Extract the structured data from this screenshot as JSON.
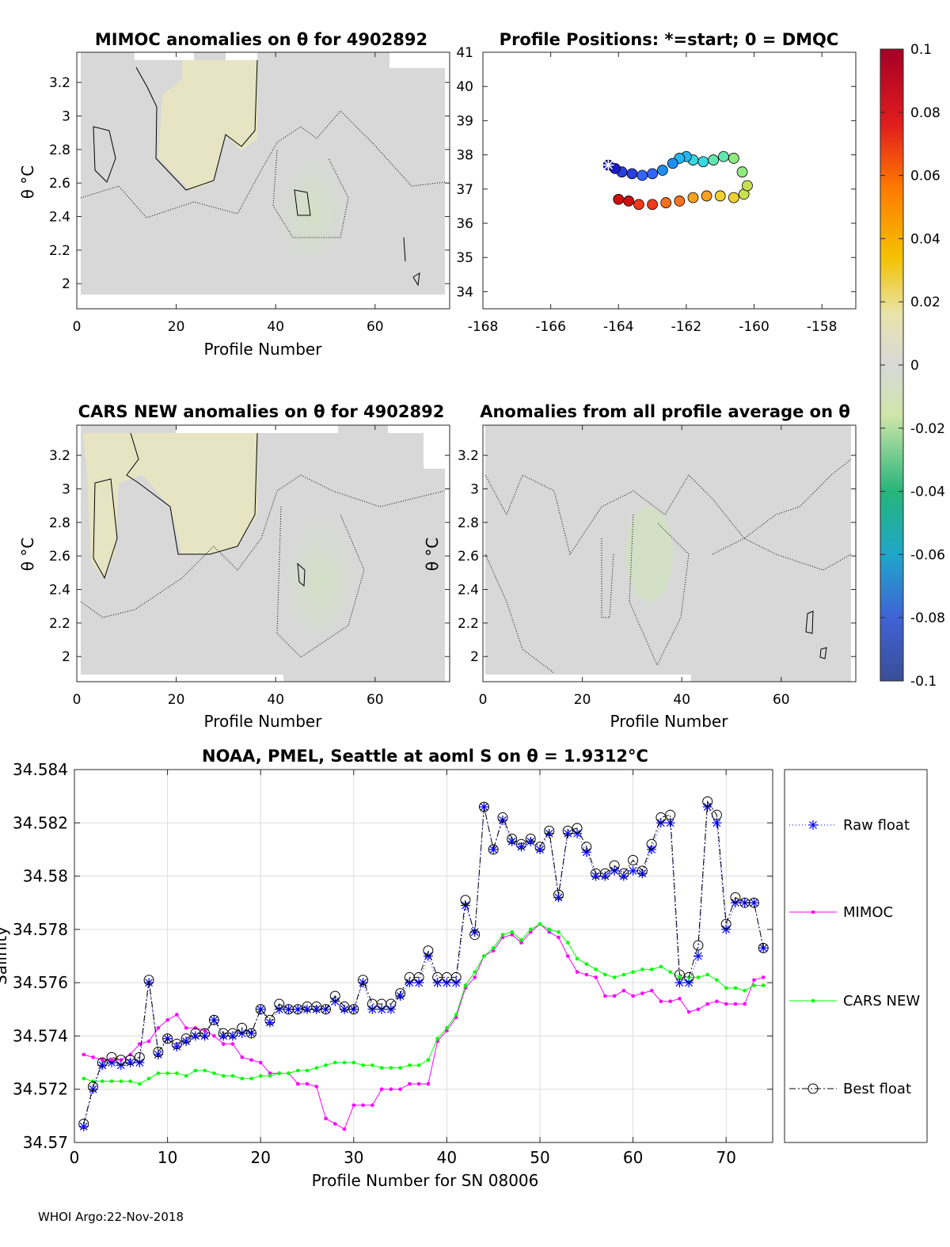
{
  "chart_data": [
    {
      "id": "mimoc",
      "type": "heatmap",
      "title": "MIMOC anomalies on θ  for 4902892",
      "xlabel": "Profile Number",
      "ylabel": "θ °C",
      "xlim": [
        0,
        75
      ],
      "ylim": [
        1.85,
        3.38
      ],
      "xticks": [
        "0",
        "20",
        "40",
        "60"
      ],
      "yticks": [
        "2",
        "2.2",
        "2.4",
        "2.6",
        "2.8",
        "3",
        "3.2"
      ],
      "contour_levels": [
        -0.01,
        0.01
      ]
    },
    {
      "id": "positions",
      "type": "scatter",
      "title": "Profile Positions: *=start; 0 = DMQC",
      "xlim": [
        -168,
        -157
      ],
      "ylim": [
        33.5,
        41
      ],
      "xticks": [
        "-168",
        "-166",
        "-164",
        "-162",
        "-160",
        "-158"
      ],
      "yticks": [
        "34",
        "35",
        "36",
        "37",
        "38",
        "39",
        "40",
        "41"
      ],
      "track_lon": [
        -164.3,
        -164.1,
        -163.9,
        -163.6,
        -163.3,
        -163.0,
        -162.7,
        -162.4,
        -162.2,
        -162.0,
        -161.8,
        -161.5,
        -161.2,
        -160.9,
        -160.6,
        -160.35,
        -160.2,
        -160.3,
        -160.6,
        -161.0,
        -161.4,
        -161.8,
        -162.2,
        -162.6,
        -163.0,
        -163.4,
        -163.7,
        -164.0
      ],
      "track_lat": [
        37.7,
        37.6,
        37.5,
        37.45,
        37.4,
        37.45,
        37.55,
        37.75,
        37.9,
        37.95,
        37.85,
        37.8,
        37.85,
        37.95,
        37.9,
        37.5,
        37.1,
        36.85,
        36.75,
        36.8,
        36.8,
        36.75,
        36.65,
        36.6,
        36.55,
        36.55,
        36.65,
        36.7
      ]
    },
    {
      "id": "colorbar",
      "type": "colorbar",
      "range": [
        -0.1,
        0.1
      ],
      "ticks": [
        "0.1",
        "0.08",
        "0.06",
        "0.04",
        "0.02",
        "0",
        "-0.02",
        "-0.04",
        "-0.06",
        "-0.08",
        "-0.1"
      ]
    },
    {
      "id": "cars",
      "type": "heatmap",
      "title": "CARS NEW anomalies on θ for 4902892",
      "xlabel": "Profile Number",
      "ylabel": "θ °C",
      "xlim": [
        0,
        75
      ],
      "ylim": [
        1.85,
        3.38
      ],
      "xticks": [
        "0",
        "20",
        "40",
        "60"
      ],
      "yticks": [
        "2",
        "2.2",
        "2.4",
        "2.6",
        "2.8",
        "3",
        "3.2"
      ]
    },
    {
      "id": "allavg",
      "type": "heatmap",
      "title": "Anomalies from all profile average on θ",
      "xlabel": "Profile Number",
      "ylabel": "θ °C",
      "xlim": [
        0,
        75
      ],
      "ylim": [
        1.85,
        3.38
      ],
      "xticks": [
        "0",
        "20",
        "40",
        "60"
      ],
      "yticks": [
        "2",
        "2.2",
        "2.4",
        "2.6",
        "2.8",
        "3",
        "3.2"
      ]
    },
    {
      "id": "salinity",
      "type": "line",
      "title": "NOAA, PMEL, Seattle at aoml S on θ = 1.9312°C",
      "xlabel": "Profile Number for SN 08006",
      "ylabel": "Salinity",
      "xlim": [
        0,
        75
      ],
      "ylim": [
        34.57,
        34.584
      ],
      "xticks": [
        "0",
        "10",
        "20",
        "30",
        "40",
        "50",
        "60",
        "70"
      ],
      "yticks": [
        "34.57",
        "34.572",
        "34.574",
        "34.576",
        "34.578",
        "34.58",
        "34.582",
        "34.584"
      ],
      "grid": true,
      "legend_position": "right-outside",
      "x": [
        1,
        2,
        3,
        4,
        5,
        6,
        7,
        8,
        9,
        10,
        11,
        12,
        13,
        14,
        15,
        16,
        17,
        18,
        19,
        20,
        21,
        22,
        23,
        24,
        25,
        26,
        27,
        28,
        29,
        30,
        31,
        32,
        33,
        34,
        35,
        36,
        37,
        38,
        39,
        40,
        41,
        42,
        43,
        44,
        45,
        46,
        47,
        48,
        49,
        50,
        51,
        52,
        53,
        54,
        55,
        56,
        57,
        58,
        59,
        60,
        61,
        62,
        63,
        64,
        65,
        66,
        67,
        68,
        69,
        70,
        71,
        72,
        73,
        74
      ],
      "series": [
        {
          "name": "Raw float",
          "color": "#0000ff",
          "marker": "star",
          "dash": "1,3",
          "values": [
            34.5706,
            34.572,
            34.5729,
            34.573,
            34.5729,
            34.573,
            34.573,
            34.576,
            34.5733,
            34.5739,
            34.5736,
            34.5738,
            34.574,
            34.574,
            34.5746,
            34.574,
            34.574,
            34.5741,
            34.5741,
            34.575,
            34.5745,
            34.575,
            34.575,
            34.575,
            34.575,
            34.575,
            34.575,
            34.5753,
            34.575,
            34.575,
            34.576,
            34.575,
            34.575,
            34.575,
            34.5755,
            34.576,
            34.576,
            34.577,
            34.576,
            34.576,
            34.576,
            34.5789,
            34.5779,
            34.5826,
            34.581,
            34.5821,
            34.5813,
            34.5811,
            34.5813,
            34.581,
            34.5816,
            34.5792,
            34.5816,
            34.5816,
            34.5809,
            34.58,
            34.58,
            34.5802,
            34.58,
            34.5802,
            34.5801,
            34.581,
            34.582,
            34.582,
            34.576,
            34.576,
            34.577,
            34.5826,
            34.582,
            34.578,
            34.579,
            34.579,
            34.579,
            34.5773
          ]
        },
        {
          "name": "MIMOC",
          "color": "#ff00ff",
          "marker": "dot",
          "dash": "",
          "values": [
            34.5733,
            34.5732,
            34.5731,
            34.5731,
            34.5731,
            34.5733,
            34.5737,
            34.5738,
            34.5743,
            34.5746,
            34.5748,
            34.5743,
            34.5743,
            34.5742,
            34.574,
            34.5737,
            34.5737,
            34.5732,
            34.5731,
            34.573,
            34.5726,
            34.5726,
            34.5726,
            34.5722,
            34.5722,
            34.5721,
            34.5709,
            34.5707,
            34.5705,
            34.5714,
            34.5714,
            34.5714,
            34.572,
            34.572,
            34.572,
            34.5722,
            34.5722,
            34.5722,
            34.5738,
            34.5742,
            34.5747,
            34.5758,
            34.5762,
            34.577,
            34.5772,
            34.5777,
            34.5778,
            34.5775,
            34.5779,
            34.5782,
            34.5779,
            34.5777,
            34.577,
            34.5764,
            34.5763,
            34.5762,
            34.5755,
            34.5755,
            34.5757,
            34.5755,
            34.5756,
            34.5757,
            34.5753,
            34.5753,
            34.5754,
            34.5749,
            34.575,
            34.5752,
            34.5753,
            34.5752,
            34.5752,
            34.5752,
            34.5761,
            34.5762
          ]
        },
        {
          "name": "CARS NEW",
          "color": "#00ff00",
          "marker": "dot",
          "dash": "",
          "values": [
            34.5724,
            34.5723,
            34.5723,
            34.5723,
            34.5723,
            34.5723,
            34.5722,
            34.5724,
            34.5726,
            34.5726,
            34.5726,
            34.5725,
            34.5727,
            34.5727,
            34.5726,
            34.5725,
            34.5725,
            34.5724,
            34.5724,
            34.5725,
            34.5725,
            34.5726,
            34.5726,
            34.5727,
            34.5727,
            34.5728,
            34.5729,
            34.573,
            34.573,
            34.573,
            34.5729,
            34.5729,
            34.5728,
            34.5728,
            34.5728,
            34.5729,
            34.5729,
            34.5731,
            34.5739,
            34.5743,
            34.5748,
            34.5759,
            34.5764,
            34.577,
            34.5773,
            34.5778,
            34.5779,
            34.5776,
            34.578,
            34.5782,
            34.578,
            34.5779,
            34.5775,
            34.5769,
            34.5767,
            34.5765,
            34.5763,
            34.5762,
            34.5763,
            34.5764,
            34.5765,
            34.5765,
            34.5766,
            34.5764,
            34.5762,
            34.5762,
            34.5762,
            34.5763,
            34.5761,
            34.5758,
            34.5758,
            34.5757,
            34.5759,
            34.5759
          ]
        },
        {
          "name": "Best float",
          "color": "#000000",
          "marker": "circle",
          "dash": "8,3,2,3",
          "values": [
            34.5707,
            34.5721,
            34.573,
            34.5732,
            34.5731,
            34.5731,
            34.5732,
            34.5761,
            34.5734,
            34.5739,
            34.5737,
            34.5739,
            34.5741,
            34.5741,
            34.5746,
            34.5741,
            34.5741,
            34.5743,
            34.5741,
            34.575,
            34.5746,
            34.5752,
            34.575,
            34.575,
            34.5751,
            34.5751,
            34.575,
            34.5755,
            34.5751,
            34.575,
            34.5761,
            34.5752,
            34.5752,
            34.5752,
            34.5756,
            34.5762,
            34.5762,
            34.5772,
            34.5762,
            34.5762,
            34.5762,
            34.5791,
            34.5778,
            34.5826,
            34.581,
            34.5822,
            34.5814,
            34.5812,
            34.5814,
            34.5811,
            34.5817,
            34.5793,
            34.5817,
            34.5818,
            34.5811,
            34.5801,
            34.5801,
            34.5804,
            34.5801,
            34.5806,
            34.5802,
            34.5812,
            34.5822,
            34.5823,
            34.5763,
            34.5762,
            34.5774,
            34.5828,
            34.5823,
            34.5782,
            34.5792,
            34.579,
            34.579,
            34.5773
          ]
        }
      ]
    }
  ],
  "footer": "WHOI Argo:22-Nov-2018"
}
